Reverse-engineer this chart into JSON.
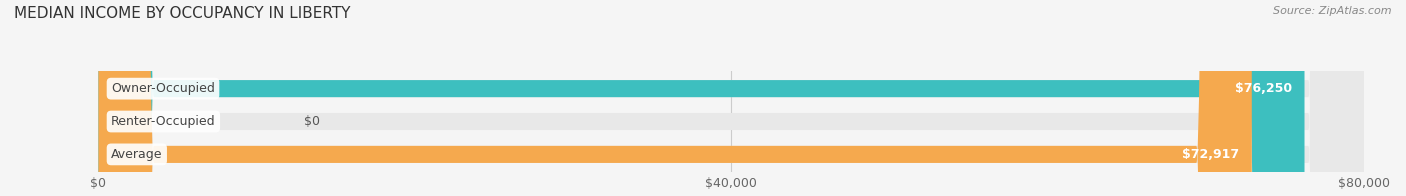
{
  "title": "MEDIAN INCOME BY OCCUPANCY IN LIBERTY",
  "source": "Source: ZipAtlas.com",
  "categories": [
    "Owner-Occupied",
    "Renter-Occupied",
    "Average"
  ],
  "values": [
    76250,
    0,
    72917
  ],
  "bar_colors": [
    "#3dbfbf",
    "#c9a8d4",
    "#f5a94e"
  ],
  "bar_bg_color": "#e8e8e8",
  "value_labels": [
    "$76,250",
    "$0",
    "$72,917"
  ],
  "xlim": [
    0,
    80000
  ],
  "xticks": [
    0,
    40000,
    80000
  ],
  "xtick_labels": [
    "$0",
    "$40,000",
    "$80,000"
  ],
  "title_fontsize": 11,
  "tick_fontsize": 9,
  "bar_label_fontsize": 9,
  "value_label_fontsize": 9,
  "background_color": "#f5f5f5",
  "bar_height": 0.52,
  "fig_width": 14.06,
  "fig_height": 1.96
}
